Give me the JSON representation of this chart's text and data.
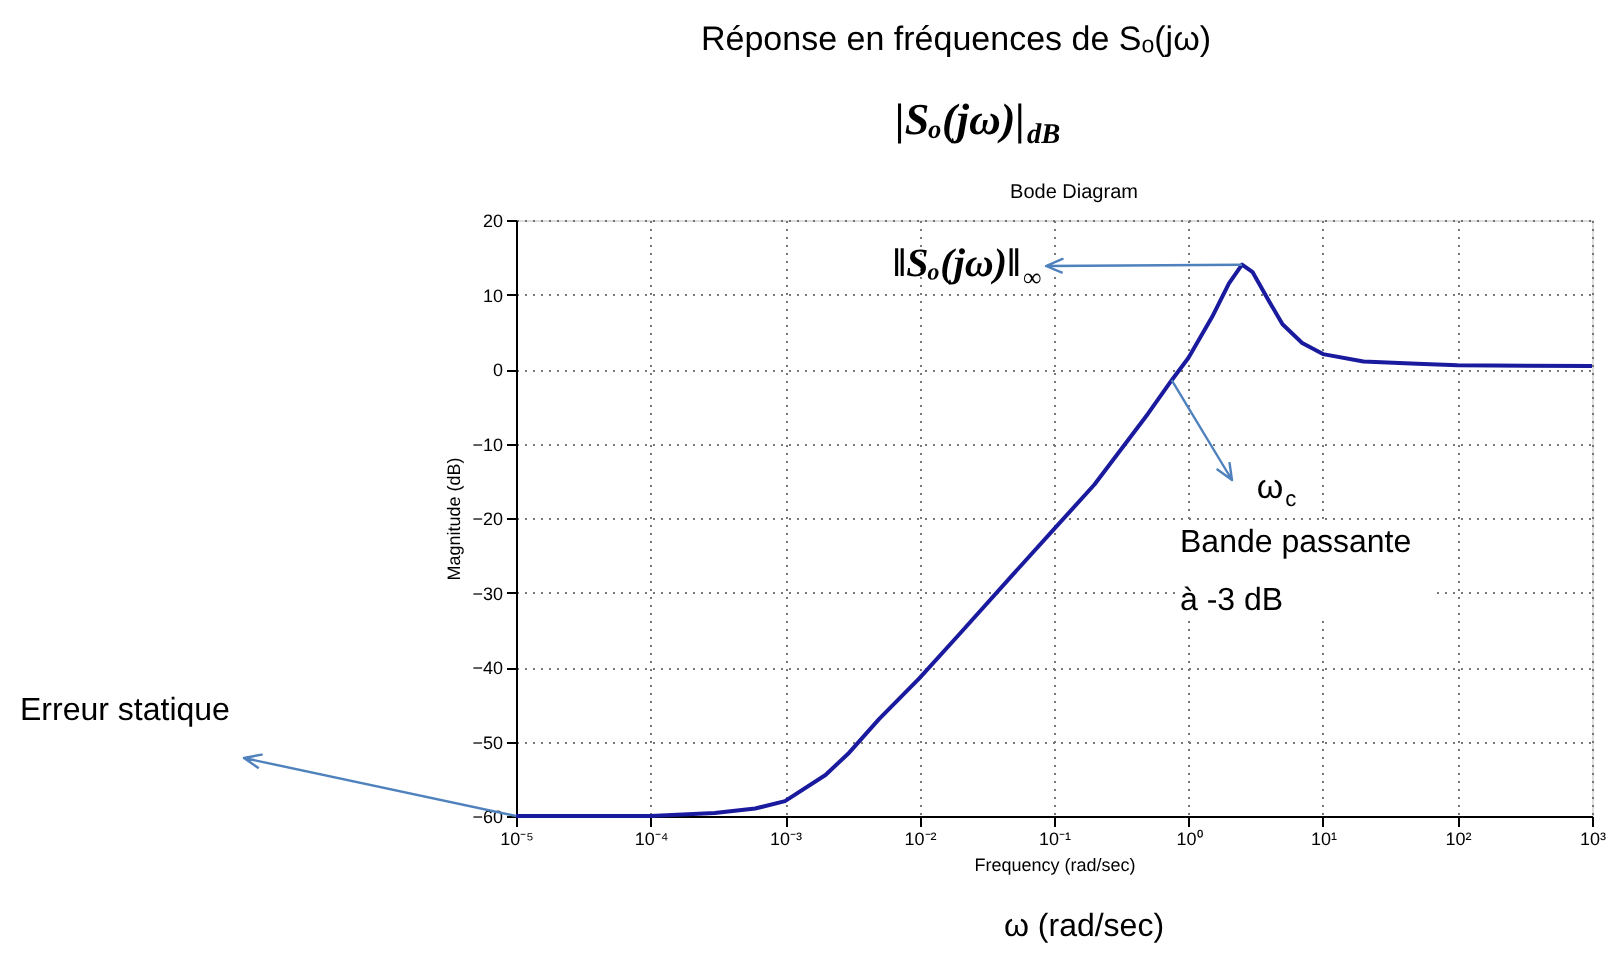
{
  "chart_data": {
    "type": "line",
    "title": "Réponse en fréquences de Sₒ(jω)",
    "subtitle": "|Sₒ(jω)|$_{dB}$",
    "xlabel": "Frequency  (rad/sec)",
    "ylabel": "Magnitude (dB)",
    "log": "x",
    "grid": true,
    "marker": "none",
    "line_style": "solid",
    "xlim": [
      1e-05,
      1000
    ],
    "ylim": [
      -60,
      20
    ],
    "xticks": [
      {
        "value": 1e-05,
        "label": "10⁻⁵"
      },
      {
        "value": 0.0001,
        "label": "10⁻⁴"
      },
      {
        "value": 0.001,
        "label": "10⁻³"
      },
      {
        "value": 0.01,
        "label": "10⁻²"
      },
      {
        "value": 0.1,
        "label": "10⁻¹"
      },
      {
        "value": 1,
        "label": "10⁰"
      },
      {
        "value": 10,
        "label": "10¹"
      },
      {
        "value": 100,
        "label": "10²"
      },
      {
        "value": 1000,
        "label": "10³"
      }
    ],
    "yticks": [
      -60,
      -50,
      -40,
      -30,
      -20,
      -10,
      0,
      10,
      20
    ],
    "x": [
      1e-05,
      0.0001,
      0.0003,
      0.0006,
      0.001,
      0.002,
      0.003,
      0.005,
      0.01,
      0.02,
      0.05,
      0.1,
      0.2,
      0.5,
      0.75,
      1,
      1.5,
      2,
      2.5,
      3,
      4,
      5,
      7,
      10,
      20,
      50,
      100,
      1000
    ],
    "series": [
      {
        "color": "#1a1a9e",
        "values": [
          -60,
          -60,
          -59.6,
          -59,
          -58,
          -54.5,
          -51.5,
          -47,
          -41.5,
          -35.5,
          -27.5,
          -21.5,
          -15.5,
          -6,
          -1.5,
          1.5,
          7,
          11.5,
          14,
          13,
          9,
          6,
          3.5,
          2,
          1,
          0.7,
          0.5,
          0.4
        ]
      }
    ],
    "annotations": [
      "Bode Diagram",
      "ω (rad/sec)",
      {
        "text": "‖Sₒ(jω)‖$_{∞}$",
        "x": 2.5,
        "y": 14
      },
      {
        "text": "ω$_{c}$",
        "x": 0.75,
        "y": -1.5
      },
      "Bande passante\nà -3 dB",
      "Erreur statique"
    ]
  }
}
